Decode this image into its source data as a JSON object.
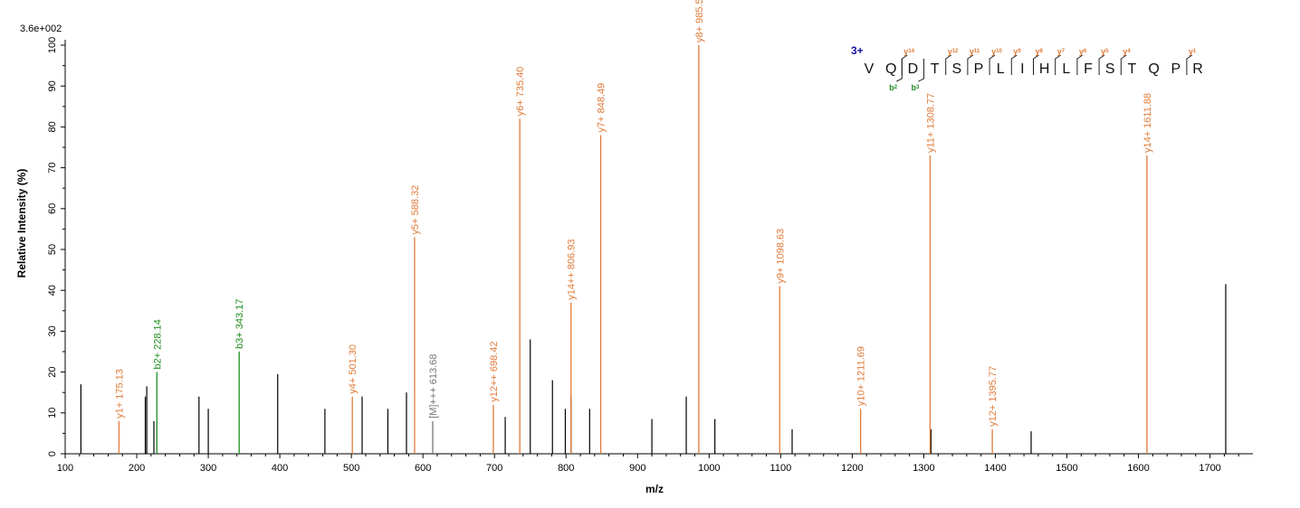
{
  "chart_data": {
    "type": "bar",
    "scale_label": "3.6e+002",
    "xlabel": "m/z",
    "ylabel": "Relative   Intensity (%)",
    "xlim": [
      100,
      1760
    ],
    "ylim": [
      0,
      100
    ],
    "xticks": [
      100,
      200,
      300,
      400,
      500,
      600,
      700,
      800,
      900,
      1000,
      1100,
      1200,
      1300,
      1400,
      1500,
      1600,
      1700
    ],
    "yticks": [
      0,
      10,
      20,
      30,
      40,
      50,
      60,
      70,
      80,
      90,
      100
    ],
    "grid": false,
    "colors": {
      "y": "#e07b39",
      "b": "#1e8c1e",
      "precursor": "#777777",
      "unannotated": "#000000",
      "charge": "#1010a0"
    },
    "annotated_peaks": [
      {
        "mz": 175.13,
        "intensity": 8,
        "label": "y1+ 175.13",
        "ion": "y"
      },
      {
        "mz": 228.14,
        "intensity": 20,
        "label": "b2+ 228.14",
        "ion": "b"
      },
      {
        "mz": 343.17,
        "intensity": 25,
        "label": "b3+ 343.17",
        "ion": "b"
      },
      {
        "mz": 501.3,
        "intensity": 14,
        "label": "y4+ 501.30",
        "ion": "y"
      },
      {
        "mz": 588.32,
        "intensity": 53,
        "label": "y5+ 588.32",
        "ion": "y"
      },
      {
        "mz": 613.68,
        "intensity": 8,
        "label": "[M]+++ 613.68",
        "ion": "precursor"
      },
      {
        "mz": 698.42,
        "intensity": 12,
        "label": "y12++ 698.42",
        "ion": "y"
      },
      {
        "mz": 735.4,
        "intensity": 82,
        "label": "y6+ 735.40",
        "ion": "y"
      },
      {
        "mz": 806.93,
        "intensity": 37,
        "label": "y14++ 806.93",
        "ion": "y"
      },
      {
        "mz": 848.49,
        "intensity": 78,
        "label": "y7+ 848.49",
        "ion": "y"
      },
      {
        "mz": 985.55,
        "intensity": 100,
        "label": "y8+ 985.55",
        "ion": "y"
      },
      {
        "mz": 1098.63,
        "intensity": 41,
        "label": "y9+ 1098.63",
        "ion": "y"
      },
      {
        "mz": 1211.69,
        "intensity": 11,
        "label": "y10+ 1211.69",
        "ion": "y"
      },
      {
        "mz": 1308.77,
        "intensity": 73,
        "label": "y11+ 1308.77",
        "ion": "y"
      },
      {
        "mz": 1395.77,
        "intensity": 6,
        "label": "y12+ 1395.77",
        "ion": "y"
      },
      {
        "mz": 1611.88,
        "intensity": 73,
        "label": "y14+ 1611.88",
        "ion": "y"
      }
    ],
    "unannotated_peaks": [
      {
        "mz": 122,
        "intensity": 17
      },
      {
        "mz": 212,
        "intensity": 14
      },
      {
        "mz": 214,
        "intensity": 16.5
      },
      {
        "mz": 224,
        "intensity": 8
      },
      {
        "mz": 287,
        "intensity": 14
      },
      {
        "mz": 300,
        "intensity": 11
      },
      {
        "mz": 397,
        "intensity": 19.5
      },
      {
        "mz": 463,
        "intensity": 11
      },
      {
        "mz": 515,
        "intensity": 14
      },
      {
        "mz": 551,
        "intensity": 11
      },
      {
        "mz": 577,
        "intensity": 15
      },
      {
        "mz": 715,
        "intensity": 9
      },
      {
        "mz": 750,
        "intensity": 28
      },
      {
        "mz": 781,
        "intensity": 18
      },
      {
        "mz": 799,
        "intensity": 11
      },
      {
        "mz": 807,
        "intensity": 14
      },
      {
        "mz": 833,
        "intensity": 11
      },
      {
        "mz": 920,
        "intensity": 8.5
      },
      {
        "mz": 968,
        "intensity": 14
      },
      {
        "mz": 1008,
        "intensity": 8.5
      },
      {
        "mz": 1116,
        "intensity": 6
      },
      {
        "mz": 1310,
        "intensity": 6
      },
      {
        "mz": 1450,
        "intensity": 5.5
      },
      {
        "mz": 1722,
        "intensity": 41.5
      }
    ],
    "sequence": {
      "charge": "3+",
      "residues": [
        "V",
        "Q",
        "D",
        "T",
        "S",
        "P",
        "L",
        "I",
        "H",
        "L",
        "F",
        "S",
        "T",
        "Q",
        "P",
        "R"
      ],
      "y_marks": [
        {
          "after": 2,
          "text": "y",
          "sub": "14"
        },
        {
          "after": 4,
          "text": "y",
          "sub": "12"
        },
        {
          "after": 5,
          "text": "y",
          "sub": "11"
        },
        {
          "after": 6,
          "text": "y",
          "sub": "10"
        },
        {
          "after": 7,
          "text": "y",
          "sub": "9"
        },
        {
          "after": 8,
          "text": "y",
          "sub": "8"
        },
        {
          "after": 9,
          "text": "y",
          "sub": "7"
        },
        {
          "after": 10,
          "text": "y",
          "sub": "6"
        },
        {
          "after": 11,
          "text": "y",
          "sub": "5"
        },
        {
          "after": 12,
          "text": "y",
          "sub": "4"
        },
        {
          "after": 15,
          "text": "y",
          "sub": "1"
        }
      ],
      "b_marks": [
        {
          "after": 2,
          "text": "b",
          "sub": "2"
        },
        {
          "after": 3,
          "text": "b",
          "sub": "3"
        }
      ]
    }
  }
}
